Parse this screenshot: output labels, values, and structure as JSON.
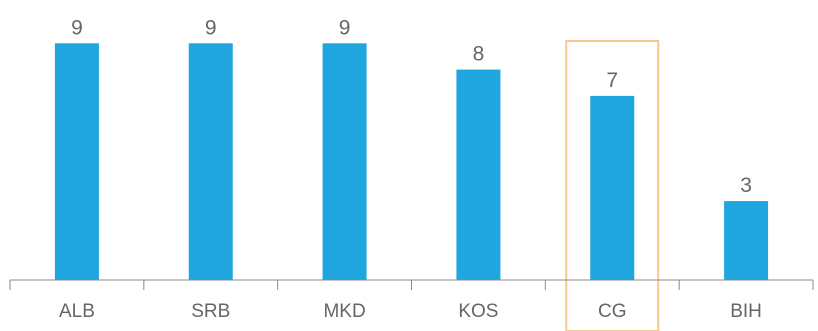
{
  "chart_data": {
    "type": "bar",
    "categories": [
      "ALB",
      "SRB",
      "MKD",
      "KOS",
      "CG",
      "BIH"
    ],
    "values": [
      9,
      9,
      9,
      8,
      7,
      3
    ],
    "ylim": [
      0,
      10
    ],
    "data_labels": true,
    "highlighted_category": "CG",
    "grid": false,
    "legend": "none",
    "colors": {
      "bar": "#1fa6df",
      "highlight_outline": "#f6c98e",
      "text": "#666666",
      "axis": "#8a8a8a"
    }
  }
}
